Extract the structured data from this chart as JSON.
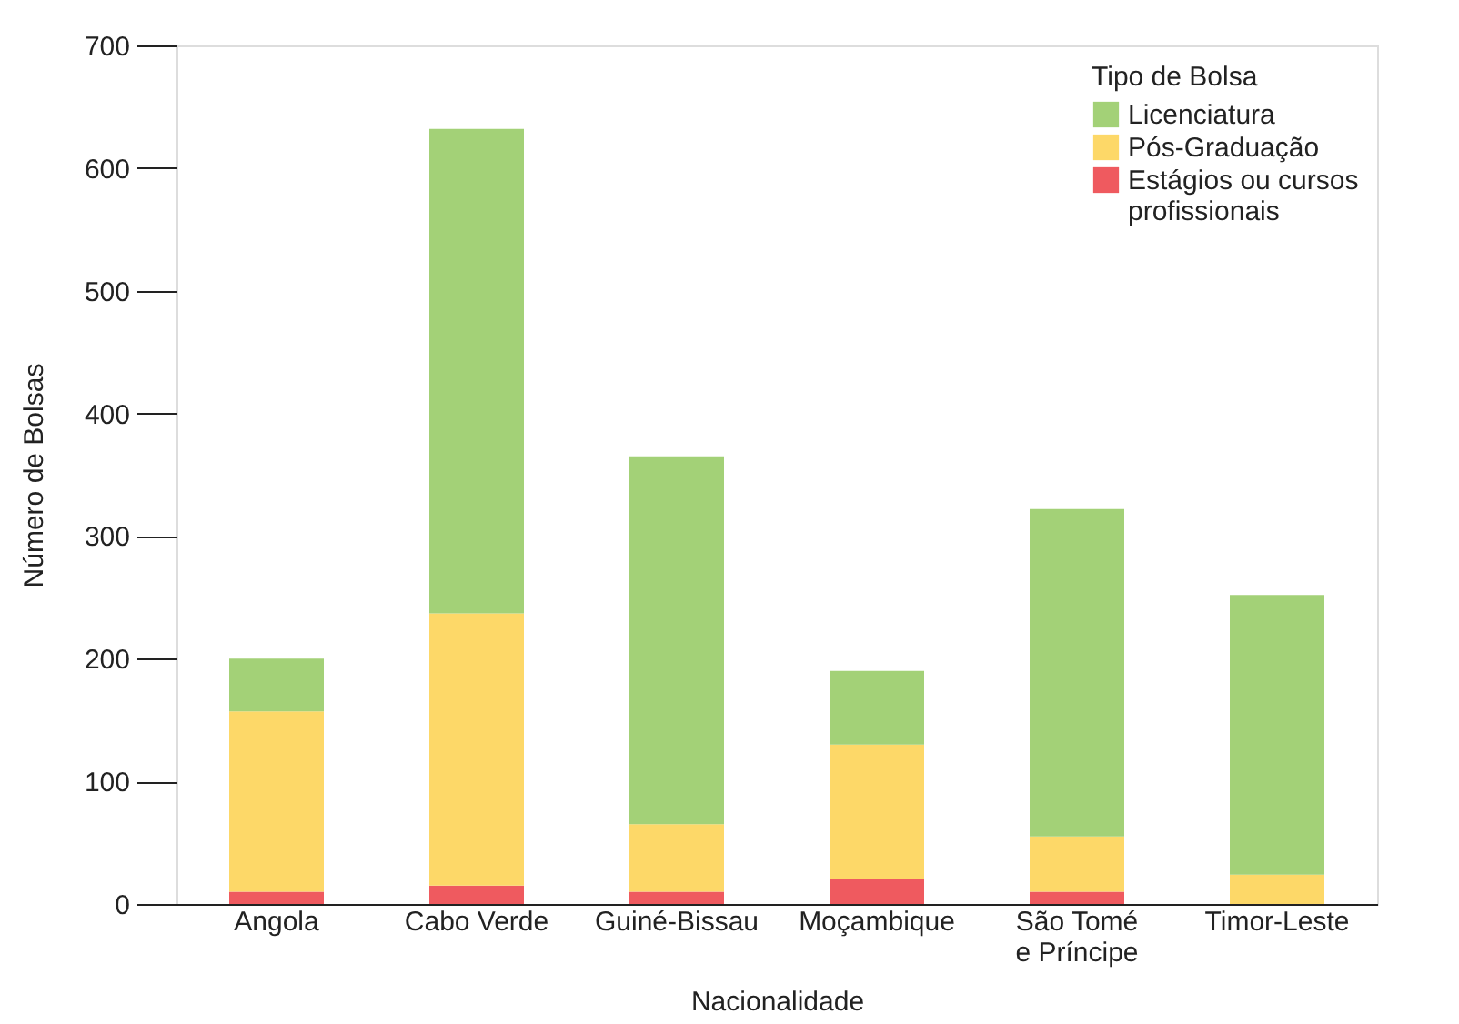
{
  "chart_data": {
    "type": "bar",
    "stacked": true,
    "xlabel": "Nacionalidade",
    "ylabel": "Número de Bolsas",
    "legend_title": "Tipo de Bolsa",
    "legend": "top right",
    "grid": false,
    "categories": [
      "Angola",
      "Cabo Verde",
      "Guiné-Bissau",
      "Moçambique",
      "São Tomé\ne Príncipe",
      "Timor-Leste"
    ],
    "ylim": [
      0,
      700
    ],
    "yticks": [
      0,
      100,
      200,
      300,
      400,
      500,
      600,
      700
    ],
    "series": [
      {
        "name": "Estágios ou cursos\nprofissionais",
        "color": "#ef5a5f",
        "values": [
          10,
          15,
          10,
          20,
          10,
          0
        ]
      },
      {
        "name": "Pós-Graduação",
        "color": "#fdd868",
        "values": [
          147,
          222,
          55,
          110,
          45,
          24
        ]
      },
      {
        "name": "Licenciatura",
        "color": "#a3d177",
        "values": [
          43,
          395,
          300,
          60,
          267,
          228
        ]
      }
    ]
  }
}
